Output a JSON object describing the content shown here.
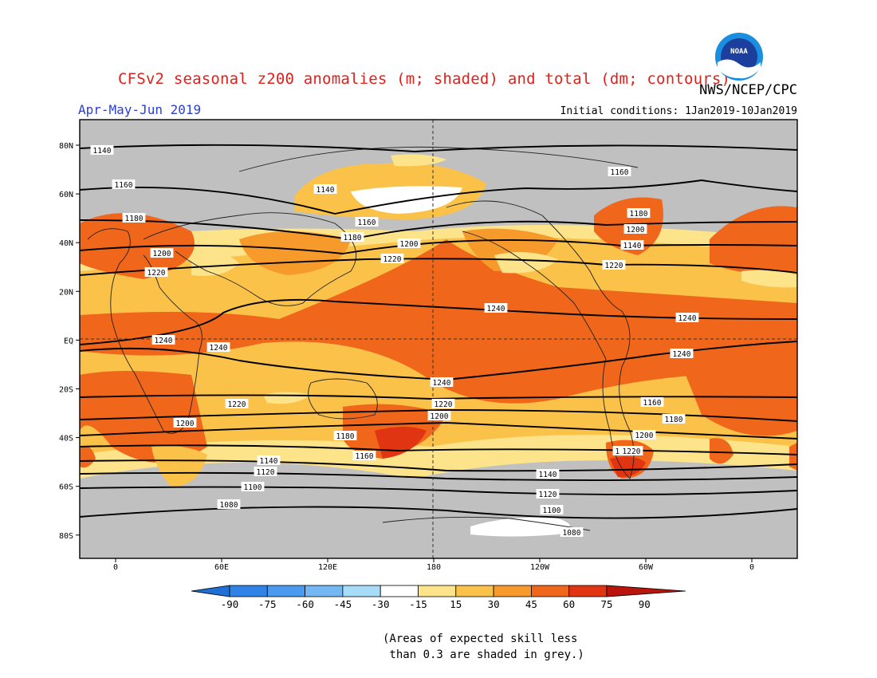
{
  "title": "CFSv2 seasonal z200 anomalies (m; shaded) and total (dm; contours)",
  "agency": "NWS/NCEP/CPC",
  "season": "Apr-May-Jun 2019",
  "initial_conditions": "Initial conditions: 1Jan2019-10Jan2019",
  "logo_text": "NOAA",
  "lat_labels": [
    "80N",
    "60N",
    "40N",
    "20N",
    "EQ",
    "20S",
    "40S",
    "60S",
    "80S"
  ],
  "lon_labels": [
    "0",
    "60E",
    "120E",
    "180",
    "120W",
    "60W",
    "0"
  ],
  "contour_labels": [
    "1140",
    "1160",
    "1180",
    "1200",
    "1220",
    "1240",
    "1240",
    "1240",
    "1240",
    "1240",
    "1220",
    "1220",
    "1200",
    "1200",
    "1180",
    "1180",
    "1160",
    "1160",
    "1140",
    "1140",
    "1120",
    "1120",
    "1100",
    "1100",
    "1080",
    "1080",
    "1160",
    "1180",
    "1200",
    "1220",
    "1240",
    "1140",
    "1160",
    "1180",
    "1200",
    "1220",
    "1140",
    "1160",
    "1180",
    "1200",
    "1220",
    "1240"
  ],
  "colorbar": {
    "ticks": [
      "-90",
      "-75",
      "-60",
      "-45",
      "-30",
      "-15",
      "15",
      "30",
      "45",
      "60",
      "75",
      "90"
    ],
    "colors": [
      "#1e6fd8",
      "#2f83e6",
      "#4a9aef",
      "#74b8f3",
      "#a6dcf7",
      "#ffffff",
      "#fde48a",
      "#fbc24a",
      "#f69a2c",
      "#f0661a",
      "#e03412",
      "#b9150d"
    ]
  },
  "note": "(Areas of expected skill less\n than 0.3 are shaded in grey.)"
}
